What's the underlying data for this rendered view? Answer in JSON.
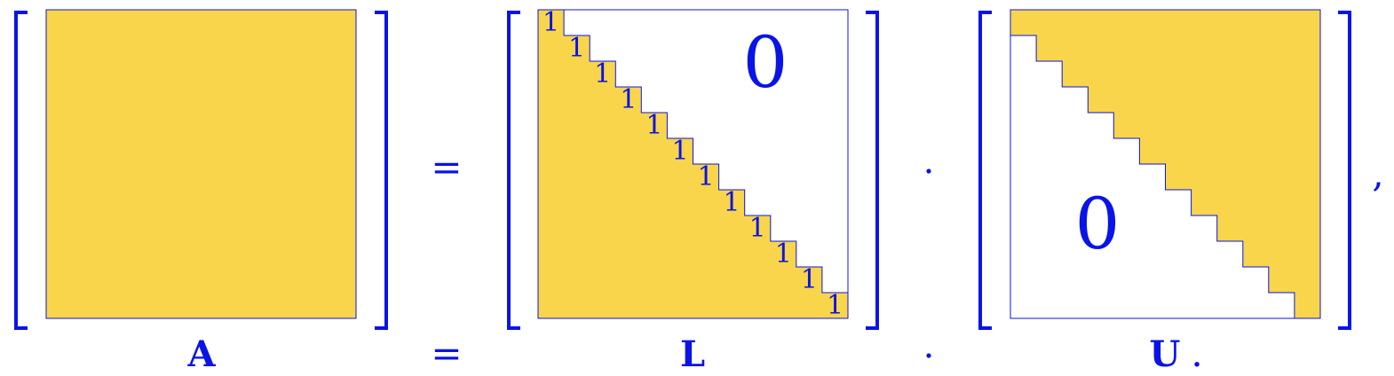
{
  "equation": {
    "equals_sign": "=",
    "dot_sign": "·",
    "comma": ",",
    "period": "."
  },
  "labels": {
    "a": "A",
    "l": "L",
    "u": "U"
  },
  "matrix_l": {
    "diagonal_value": "1",
    "diagonal_count": 12,
    "zero_label": "0"
  },
  "matrix_u": {
    "zero_label": "0",
    "step_count": 12
  },
  "colors": {
    "fill": "#F8D54A",
    "ink": "#0A14E6",
    "background": "#FFFFFF"
  }
}
